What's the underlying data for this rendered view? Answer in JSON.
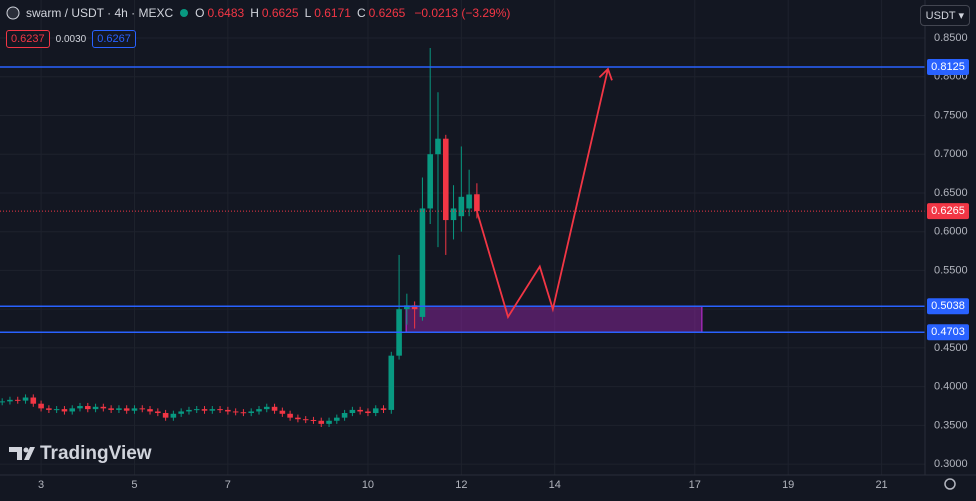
{
  "chart_data": {
    "type": "candlestick",
    "title": "swarm / USDT · 4h · MEXC",
    "ohlc_legend": [
      {
        "key": "O",
        "value": "0.6483"
      },
      {
        "key": "H",
        "value": "0.6625"
      },
      {
        "key": "L",
        "value": "0.6171"
      },
      {
        "key": "C",
        "value": "0.6265"
      }
    ],
    "change": "−0.0213 (−3.29%)",
    "toolbar": {
      "sell": "0.6237",
      "spread": "0.0030",
      "buy": "0.6267"
    },
    "currency": "USDT",
    "watermark": "TradingView",
    "up_color": "#089981",
    "down_color": "#f23645",
    "x": [
      2.167,
      2.333,
      2.5,
      2.667,
      2.833,
      3,
      3.167,
      3.333,
      3.5,
      3.667,
      3.833,
      4,
      4.167,
      4.333,
      4.5,
      4.667,
      4.833,
      5,
      5.167,
      5.333,
      5.5,
      5.667,
      5.833,
      6,
      6.167,
      6.333,
      6.5,
      6.667,
      6.833,
      7,
      7.167,
      7.333,
      7.5,
      7.667,
      7.833,
      8,
      8.167,
      8.333,
      8.5,
      8.667,
      8.833,
      9,
      9.167,
      9.333,
      9.5,
      9.667,
      9.833,
      10,
      10.167,
      10.333,
      10.5,
      10.667,
      10.833,
      11,
      11.167,
      11.333,
      11.5,
      11.667,
      11.833,
      12,
      12.167,
      12.333
    ],
    "open": [
      0.38,
      0.381,
      0.383,
      0.382,
      0.386,
      0.378,
      0.372,
      0.37,
      0.371,
      0.368,
      0.372,
      0.375,
      0.371,
      0.374,
      0.372,
      0.37,
      0.372,
      0.369,
      0.372,
      0.371,
      0.368,
      0.366,
      0.36,
      0.365,
      0.368,
      0.37,
      0.371,
      0.369,
      0.371,
      0.37,
      0.368,
      0.367,
      0.366,
      0.368,
      0.371,
      0.374,
      0.369,
      0.365,
      0.36,
      0.358,
      0.357,
      0.356,
      0.352,
      0.356,
      0.36,
      0.366,
      0.37,
      0.368,
      0.366,
      0.372,
      0.37,
      0.44,
      0.5,
      0.505,
      0.49,
      0.63,
      0.7,
      0.72,
      0.615,
      0.62,
      0.63,
      0.6483
    ],
    "high": [
      0.385,
      0.387,
      0.387,
      0.39,
      0.39,
      0.382,
      0.376,
      0.375,
      0.375,
      0.376,
      0.379,
      0.379,
      0.378,
      0.378,
      0.376,
      0.376,
      0.376,
      0.376,
      0.376,
      0.375,
      0.372,
      0.37,
      0.369,
      0.372,
      0.374,
      0.375,
      0.375,
      0.375,
      0.375,
      0.374,
      0.372,
      0.371,
      0.372,
      0.375,
      0.378,
      0.378,
      0.373,
      0.369,
      0.364,
      0.362,
      0.361,
      0.36,
      0.36,
      0.364,
      0.37,
      0.374,
      0.374,
      0.372,
      0.376,
      0.376,
      0.445,
      0.57,
      0.52,
      0.51,
      0.67,
      0.837,
      0.78,
      0.725,
      0.66,
      0.71,
      0.68,
      0.6625
    ],
    "low": [
      0.376,
      0.377,
      0.378,
      0.378,
      0.374,
      0.368,
      0.366,
      0.366,
      0.364,
      0.364,
      0.368,
      0.367,
      0.367,
      0.368,
      0.366,
      0.366,
      0.365,
      0.365,
      0.367,
      0.364,
      0.362,
      0.356,
      0.356,
      0.361,
      0.364,
      0.366,
      0.365,
      0.365,
      0.366,
      0.364,
      0.363,
      0.362,
      0.362,
      0.364,
      0.367,
      0.365,
      0.361,
      0.356,
      0.354,
      0.353,
      0.352,
      0.348,
      0.348,
      0.352,
      0.356,
      0.362,
      0.364,
      0.362,
      0.362,
      0.366,
      0.365,
      0.435,
      0.48,
      0.475,
      0.485,
      0.61,
      0.58,
      0.57,
      0.59,
      0.6,
      0.62,
      0.6171
    ],
    "close": [
      0.381,
      0.383,
      0.382,
      0.386,
      0.378,
      0.372,
      0.37,
      0.371,
      0.368,
      0.372,
      0.375,
      0.371,
      0.374,
      0.372,
      0.37,
      0.372,
      0.369,
      0.372,
      0.371,
      0.368,
      0.366,
      0.36,
      0.365,
      0.368,
      0.37,
      0.371,
      0.369,
      0.371,
      0.37,
      0.368,
      0.367,
      0.366,
      0.368,
      0.371,
      0.374,
      0.369,
      0.365,
      0.36,
      0.358,
      0.357,
      0.356,
      0.352,
      0.356,
      0.36,
      0.366,
      0.37,
      0.368,
      0.366,
      0.372,
      0.37,
      0.44,
      0.5,
      0.505,
      0.5,
      0.63,
      0.7,
      0.72,
      0.615,
      0.63,
      0.645,
      0.648,
      0.6265
    ],
    "xlim": [
      2.12,
      21.93
    ],
    "ylim": [
      0.286,
      0.899
    ],
    "xticks": [
      3,
      5,
      7,
      10,
      12,
      14,
      17,
      19,
      21
    ],
    "yticks": [
      {
        "value": 0.3,
        "label": "0.3000"
      },
      {
        "value": 0.35,
        "label": "0.3500"
      },
      {
        "value": 0.4,
        "label": "0.4000"
      },
      {
        "value": 0.45,
        "label": "0.4500"
      },
      {
        "value": 0.5,
        "label": "0.5000"
      },
      {
        "value": 0.55,
        "label": "0.5500"
      },
      {
        "value": 0.6,
        "label": "0.6000"
      },
      {
        "value": 0.65,
        "label": "0.6500"
      },
      {
        "value": 0.7,
        "label": "0.7000"
      },
      {
        "value": 0.75,
        "label": "0.7500"
      },
      {
        "value": 0.8,
        "label": "0.8000"
      },
      {
        "value": 0.85,
        "label": "0.8500"
      }
    ],
    "grid": true,
    "hlines": [
      {
        "value": 0.8125,
        "color": "#2962ff"
      },
      {
        "value": 0.5038,
        "color": "#2962ff"
      },
      {
        "value": 0.4703,
        "color": "#2962ff"
      }
    ],
    "last_price": {
      "value": 0.6265,
      "color": "#f23645"
    },
    "box": {
      "x": [
        10.82,
        17.15
      ],
      "values": [
        0.4703,
        0.5038
      ],
      "color": "#9c27b0"
    },
    "projection": {
      "x": [
        12.333,
        13.0,
        13.68,
        13.96,
        15.14
      ],
      "values": [
        0.6265,
        0.49,
        0.555,
        0.5,
        0.81
      ],
      "color": "#f23645"
    }
  }
}
